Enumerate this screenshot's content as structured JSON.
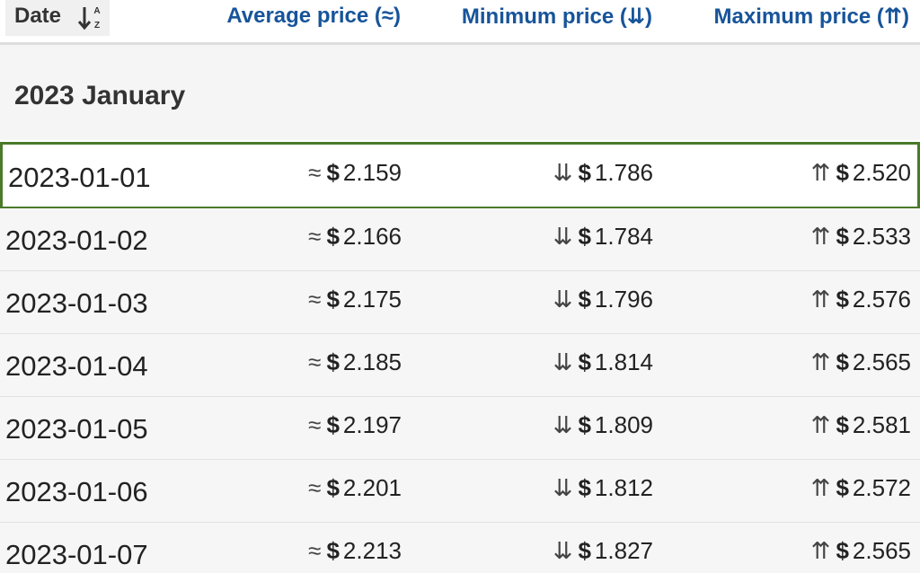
{
  "header": {
    "date": "Date",
    "sort_icon": {
      "top": "A",
      "bottom": "Z"
    },
    "average": "Average price (≈)",
    "minimum": "Minimum price (⇊)",
    "maximum": "Maximum price (⇈)"
  },
  "symbols": {
    "average": "≈",
    "minimum": "⇊",
    "maximum": "⇈",
    "currency": "$"
  },
  "group": {
    "title": "2023 January"
  },
  "table": {
    "rows": [
      [
        "2023-01-01",
        "2.159",
        "1.786",
        "2.520"
      ],
      [
        "2023-01-02",
        "2.166",
        "1.784",
        "2.533"
      ],
      [
        "2023-01-03",
        "2.175",
        "1.796",
        "2.576"
      ],
      [
        "2023-01-04",
        "2.185",
        "1.814",
        "2.565"
      ],
      [
        "2023-01-05",
        "2.197",
        "1.809",
        "2.581"
      ],
      [
        "2023-01-06",
        "2.201",
        "1.812",
        "2.572"
      ],
      [
        "2023-01-07",
        "2.213",
        "1.827",
        "2.565"
      ]
    ]
  }
}
